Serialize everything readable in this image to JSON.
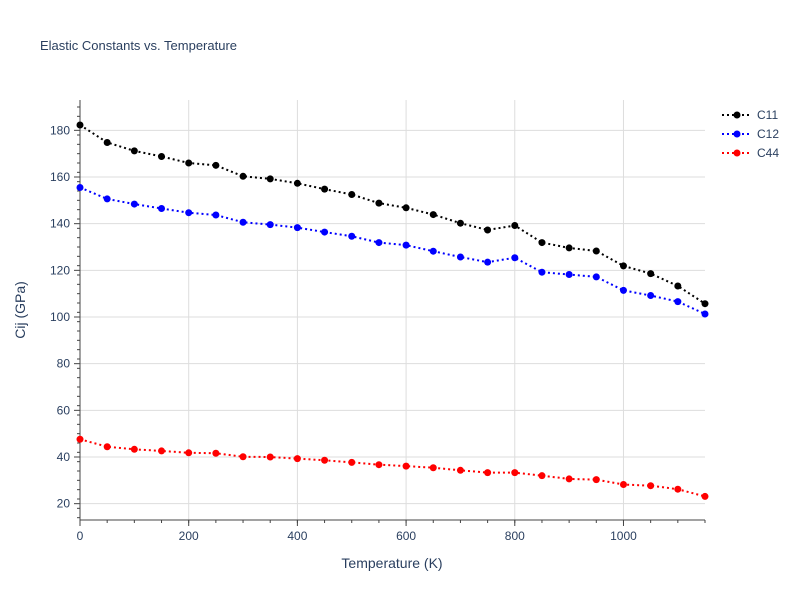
{
  "chart_data": {
    "type": "line",
    "title": "Elastic Constants vs. Temperature",
    "xlabel": "Temperature (K)",
    "ylabel": "Cij (GPa)",
    "xlim": [
      0,
      1150
    ],
    "ylim": [
      13,
      193
    ],
    "x_ticks": [
      0,
      200,
      400,
      600,
      800,
      1000
    ],
    "y_ticks": [
      20,
      40,
      60,
      80,
      100,
      120,
      140,
      160,
      180
    ],
    "grid": true,
    "legend_position": "top-right",
    "x": [
      0,
      50,
      100,
      150,
      200,
      250,
      300,
      350,
      400,
      450,
      500,
      550,
      600,
      650,
      700,
      750,
      800,
      850,
      900,
      950,
      1000,
      1050,
      1100,
      1150
    ],
    "series": [
      {
        "name": "C11",
        "color": "#000000",
        "values": [
          182.3,
          174.8,
          171.2,
          168.8,
          166.0,
          165.0,
          160.3,
          159.2,
          157.3,
          154.8,
          152.5,
          148.8,
          146.8,
          143.9,
          140.2,
          137.3,
          139.2,
          131.9,
          129.6,
          128.3,
          121.9,
          118.6,
          113.3,
          105.7
        ]
      },
      {
        "name": "C12",
        "color": "#0000ff",
        "values": [
          155.5,
          150.6,
          148.4,
          146.5,
          144.7,
          143.7,
          140.6,
          139.6,
          138.3,
          136.4,
          134.6,
          131.9,
          130.8,
          128.2,
          125.7,
          123.5,
          125.4,
          119.2,
          118.2,
          117.2,
          111.4,
          109.2,
          106.6,
          101.3
        ]
      },
      {
        "name": "C44",
        "color": "#ff0000",
        "values": [
          47.6,
          44.4,
          43.3,
          42.6,
          41.8,
          41.6,
          40.1,
          40.0,
          39.3,
          38.6,
          37.7,
          36.7,
          36.1,
          35.4,
          34.3,
          33.3,
          33.3,
          32.0,
          30.6,
          30.3,
          28.2,
          27.7,
          26.2,
          23.1
        ]
      }
    ]
  }
}
